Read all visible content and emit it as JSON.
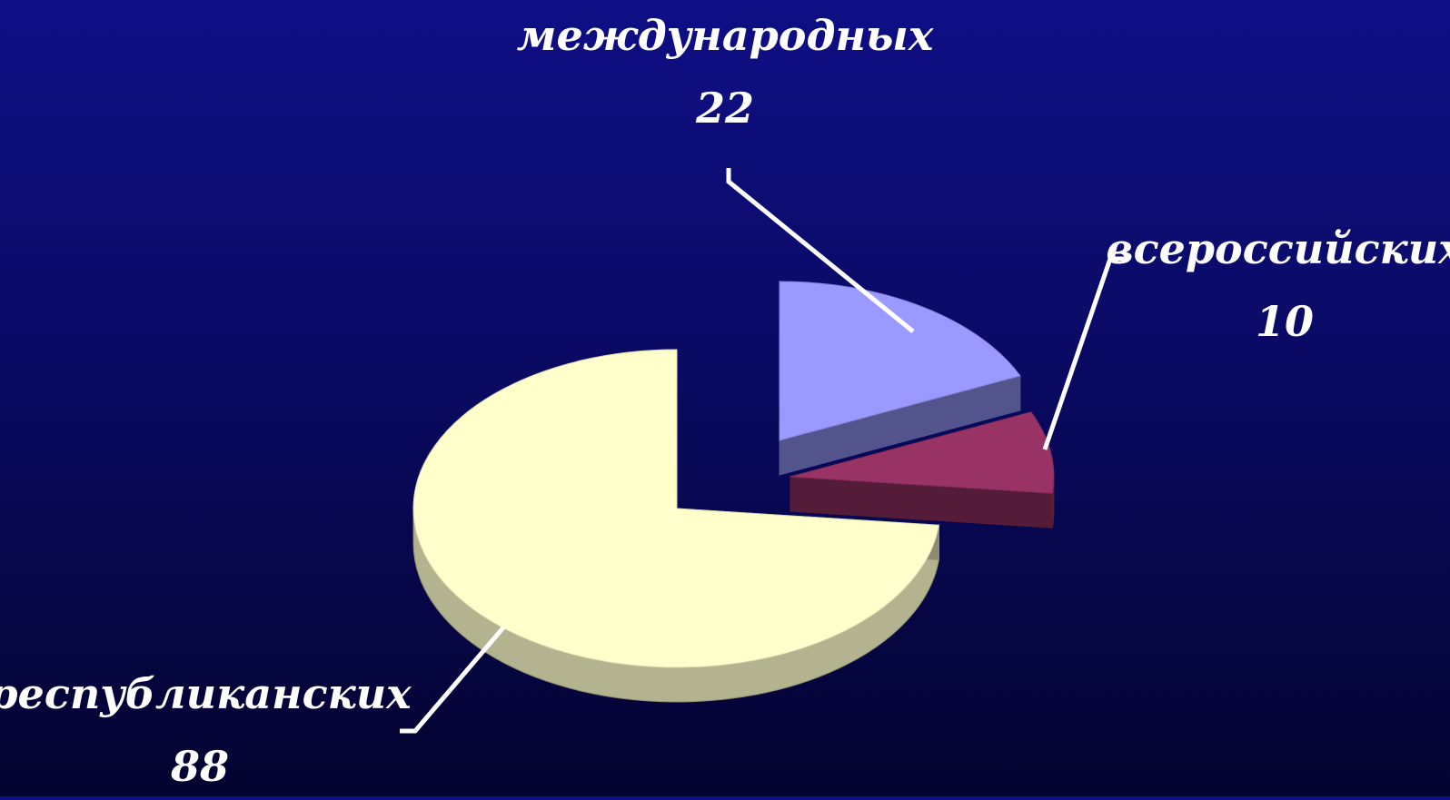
{
  "chart_data": {
    "type": "pie",
    "categories": [
      "международных",
      "всероссийских",
      "республиканских"
    ],
    "values": [
      22,
      10,
      88
    ],
    "colors": {
      "международных": "#9999ff",
      "всероссийских": "#993366",
      "республиканских": "#ffffcc"
    },
    "exploded": true,
    "three_d": true,
    "legend": "none",
    "data_labels": "category and value, with leader lines"
  }
}
